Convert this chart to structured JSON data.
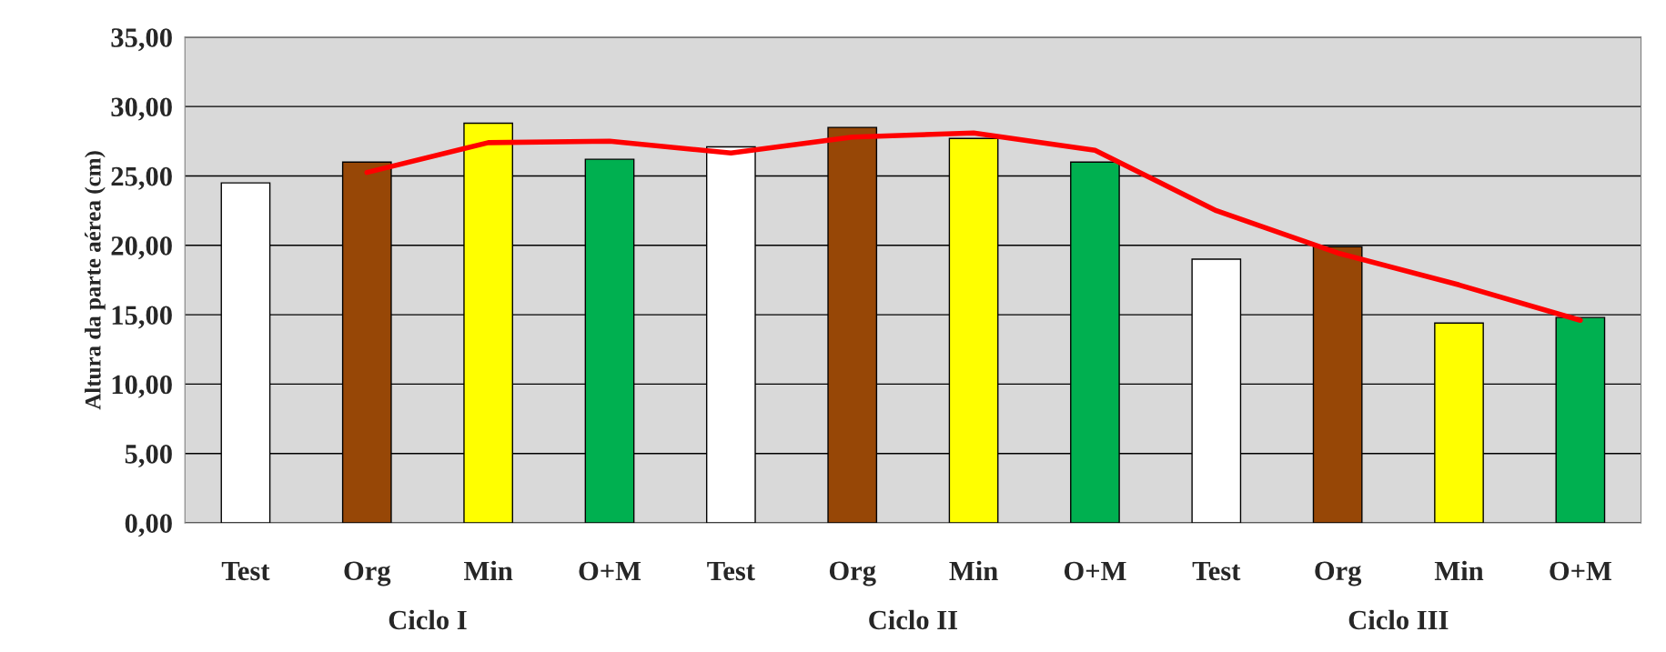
{
  "chart_data": {
    "type": "bar",
    "ylabel": "Altura da parte aérea (cm)",
    "categories": [
      "Test",
      "Org",
      "Min",
      "O+M",
      "Test",
      "Org",
      "Min",
      "O+M",
      "Test",
      "Org",
      "Min",
      "O+M"
    ],
    "series": [
      {
        "colors": [
          "#ffffff",
          "#974706",
          "#ffff00",
          "#00b050",
          "#ffffff",
          "#974706",
          "#ffff00",
          "#00b050",
          "#ffffff",
          "#974706",
          "#ffff00",
          "#00b050"
        ],
        "values": [
          24.5,
          26.0,
          28.8,
          26.2,
          27.1,
          28.5,
          27.7,
          26.0,
          19.0,
          19.9,
          14.4,
          14.8
        ]
      },
      {
        "type": "line",
        "color": "#ff0000",
        "values": [
          null,
          25.25,
          27.4,
          27.5,
          26.65,
          27.8,
          28.1,
          26.85,
          22.5,
          19.45,
          17.15,
          14.6
        ]
      }
    ],
    "annotations": [
      "Ciclo I",
      "Ciclo II",
      "Ciclo III"
    ],
    "ylim": [
      0,
      35
    ],
    "yticks": [
      {
        "value": 0,
        "label": "0,00"
      },
      {
        "value": 5,
        "label": "5,00"
      },
      {
        "value": 10,
        "label": "10,00"
      },
      {
        "value": 15,
        "label": "15,00"
      },
      {
        "value": 20,
        "label": "20,00"
      },
      {
        "value": 25,
        "label": "25,00"
      },
      {
        "value": 30,
        "label": "30,00"
      },
      {
        "value": 35,
        "label": "35,00"
      }
    ],
    "grid": "y",
    "legend": false
  }
}
